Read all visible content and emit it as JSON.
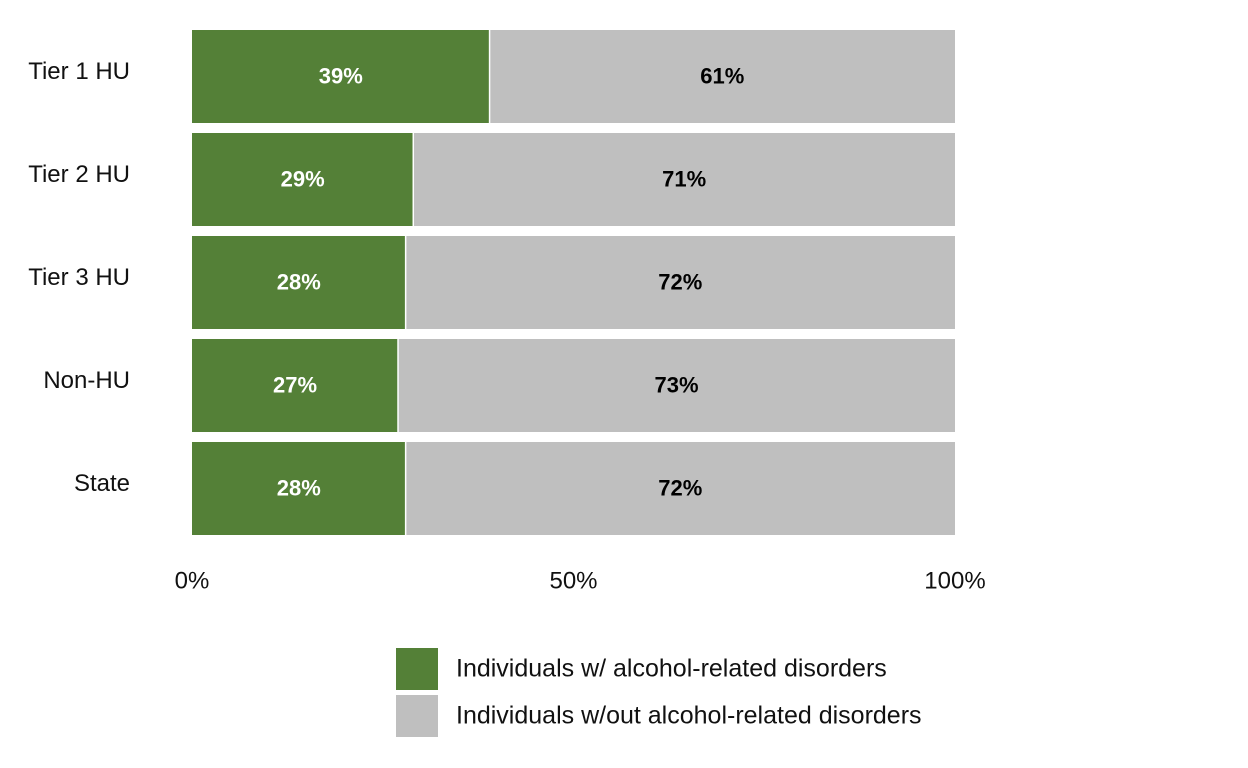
{
  "chart_data": {
    "type": "bar",
    "orientation": "horizontal",
    "stacked": true,
    "categories": [
      "Tier 1 HU",
      "Tier 2 HU",
      "Tier 3 HU",
      "Non-HU",
      "State"
    ],
    "series": [
      {
        "name": "Individuals w/ alcohol-related disorders",
        "color": "#548037",
        "label_color": "#ffffff",
        "values": [
          39,
          29,
          28,
          27,
          28
        ],
        "labels": [
          "39%",
          "29%",
          "28%",
          "27%",
          "28%"
        ]
      },
      {
        "name": "Individuals w/out alcohol-related disorders",
        "color": "#bfbfbf",
        "label_color": "#000000",
        "values": [
          61,
          71,
          72,
          73,
          72
        ],
        "labels": [
          "61%",
          "71%",
          "72%",
          "73%",
          "72%"
        ]
      }
    ],
    "xlim": [
      0,
      100
    ],
    "xticks": [
      0,
      50,
      100
    ],
    "xtick_labels": [
      "0%",
      "50%",
      "100%"
    ],
    "grid": false,
    "legend_position": "bottom"
  }
}
